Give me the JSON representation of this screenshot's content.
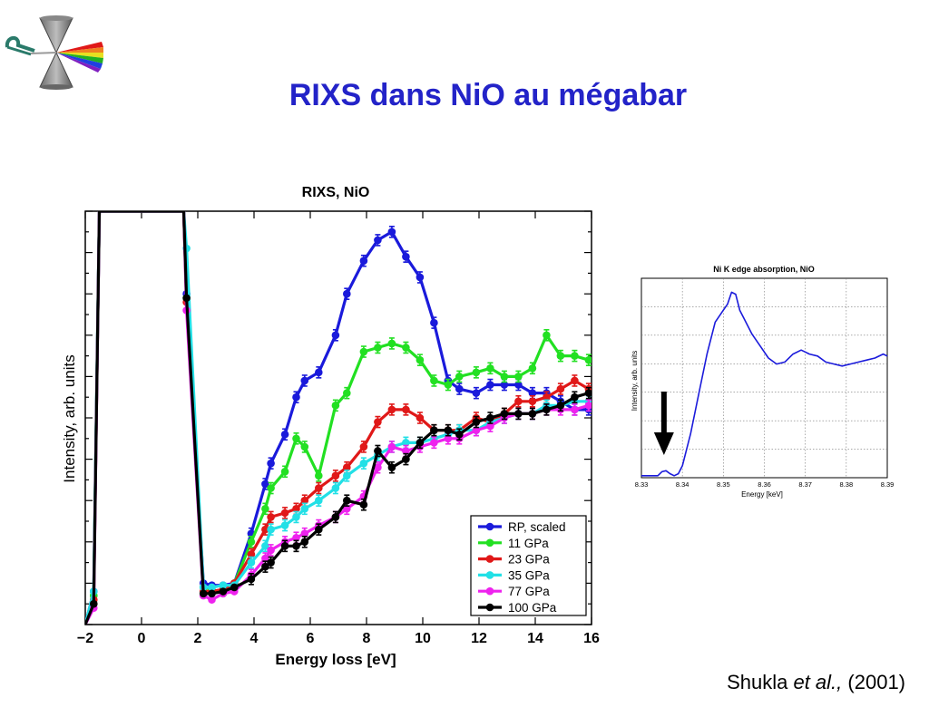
{
  "slide": {
    "title": "RIXS dans NiO au mégabar",
    "citation_author": "Shukla",
    "citation_etal": "et al.,",
    "citation_year": "(2001)"
  },
  "colors": {
    "title": "#2323c8",
    "RP, scaled": "#1a1adb",
    "11 GPa": "#22e022",
    "23 GPa": "#e01818",
    "35 GPa": "#22e0e6",
    "77 GPa": "#ee22ee",
    "100 GPa": "#000000",
    "inset_line": "#1a1adb"
  },
  "chart_data": [
    {
      "type": "line",
      "title": "RIXS, NiO",
      "xlabel": "Energy loss [eV]",
      "ylabel": "Intensity, arb. units",
      "xlim": [
        -2,
        16
      ],
      "ylim": [
        0,
        100
      ],
      "xticks": [
        -2,
        0,
        2,
        4,
        6,
        8,
        10,
        12,
        14,
        16
      ],
      "xtick_labels": [
        "−2",
        "0",
        "2",
        "4",
        "6",
        "8",
        "10",
        "12",
        "14",
        "16"
      ],
      "legend_position": "bottom-right",
      "grid": false,
      "series": [
        {
          "name": "RP, scaled",
          "x": [
            -2,
            -1.7,
            -1.5,
            1.5,
            1.6,
            2.2,
            2.5,
            2.9,
            3.3,
            3.9,
            4.4,
            4.6,
            5.1,
            5.5,
            5.8,
            6.3,
            6.9,
            7.3,
            7.9,
            8.4,
            8.9,
            9.4,
            9.9,
            10.4,
            10.9,
            11.3,
            11.9,
            12.4,
            12.9,
            13.4,
            13.9,
            14.4,
            14.9,
            15.4,
            15.9
          ],
          "y": [
            0,
            8,
            100,
            100,
            80,
            10,
            9.5,
            9.5,
            10,
            22,
            34,
            39,
            46,
            55,
            59,
            61,
            70,
            80,
            88,
            93,
            95,
            89,
            84,
            73,
            59,
            57,
            56,
            58,
            58,
            58,
            56,
            56,
            54,
            52,
            52
          ]
        },
        {
          "name": "11 GPa",
          "x": [
            -2,
            -1.7,
            -1.5,
            1.5,
            1.6,
            2.2,
            2.5,
            2.9,
            3.3,
            3.9,
            4.4,
            4.6,
            5.1,
            5.5,
            5.8,
            6.3,
            6.9,
            7.3,
            7.9,
            8.4,
            8.9,
            9.4,
            9.9,
            10.4,
            10.9,
            11.3,
            11.9,
            12.4,
            12.9,
            13.4,
            13.9,
            14.4,
            14.9,
            15.4,
            15.9
          ],
          "y": [
            0,
            7,
            100,
            100,
            79,
            9,
            8.5,
            7.5,
            10,
            20,
            28,
            33,
            37,
            45,
            43,
            36,
            53,
            56,
            66,
            67,
            68,
            67,
            64,
            59,
            58,
            60,
            61,
            62,
            60,
            60,
            62,
            70,
            65,
            65,
            64
          ]
        },
        {
          "name": "23 GPa",
          "x": [
            -2,
            -1.7,
            -1.5,
            1.5,
            1.6,
            2.2,
            2.5,
            2.9,
            3.3,
            3.9,
            4.4,
            4.6,
            5.1,
            5.5,
            5.8,
            6.3,
            6.9,
            7.3,
            7.9,
            8.4,
            8.9,
            9.4,
            9.9,
            10.4,
            10.9,
            11.3,
            11.9,
            12.4,
            12.9,
            13.4,
            13.9,
            14.4,
            14.9,
            15.4,
            15.9
          ],
          "y": [
            0,
            6,
            100,
            100,
            78,
            8,
            8,
            8.5,
            10,
            17,
            23,
            26,
            27,
            28,
            30,
            33,
            36,
            38,
            43,
            49,
            52,
            52,
            50,
            47,
            47,
            47,
            50,
            49,
            51,
            54,
            54,
            55,
            57,
            59,
            57
          ]
        },
        {
          "name": "35 GPa",
          "x": [
            -2,
            -1.7,
            -1.5,
            1.5,
            1.6,
            2.2,
            2.5,
            2.9,
            3.3,
            3.9,
            4.4,
            4.6,
            5.1,
            5.5,
            5.8,
            6.3,
            6.9,
            7.3,
            7.9,
            8.4,
            8.9,
            9.4,
            9.9,
            10.4,
            10.9,
            11.3,
            11.9,
            12.4,
            12.9,
            13.4,
            13.9,
            14.4,
            14.9,
            15.4,
            15.9
          ],
          "y": [
            0,
            8,
            100,
            100,
            91,
            9,
            9,
            9.5,
            9.5,
            15,
            19,
            23,
            24,
            26,
            28,
            30,
            33,
            36,
            39,
            41,
            43,
            44,
            44,
            45,
            46,
            47,
            47,
            49,
            50,
            51,
            51,
            53,
            53,
            54,
            54
          ]
        },
        {
          "name": "77 GPa",
          "x": [
            -2,
            -1.7,
            -1.5,
            1.5,
            1.6,
            2.2,
            2.5,
            2.9,
            3.3,
            3.9,
            4.4,
            4.6,
            5.1,
            5.5,
            5.8,
            6.3,
            6.9,
            7.3,
            7.9,
            8.4,
            8.9,
            9.4,
            9.9,
            10.4,
            10.9,
            11.3,
            11.9,
            12.4,
            12.9,
            13.4,
            13.9,
            14.4,
            14.9,
            15.4,
            15.9
          ],
          "y": [
            0,
            4,
            100,
            100,
            76,
            7,
            6,
            7.5,
            8,
            12,
            16,
            18,
            20,
            21,
            22,
            24,
            26,
            28,
            31,
            38,
            43,
            42,
            43,
            44,
            45,
            45,
            47,
            48,
            50,
            51,
            51,
            52,
            52,
            52,
            53
          ]
        },
        {
          "name": "100 GPa",
          "x": [
            -2,
            -1.7,
            -1.5,
            1.5,
            1.6,
            2.2,
            2.5,
            2.9,
            3.3,
            3.9,
            4.4,
            4.6,
            5.1,
            5.5,
            5.8,
            6.3,
            6.9,
            7.3,
            7.9,
            8.4,
            8.9,
            9.4,
            9.9,
            10.4,
            10.9,
            11.3,
            11.9,
            12.4,
            12.9,
            13.4,
            13.9,
            14.4,
            14.9,
            15.4,
            15.9
          ],
          "y": [
            0,
            5,
            100,
            100,
            79,
            7.5,
            7.5,
            8,
            9,
            11,
            14,
            15,
            19,
            19,
            20,
            23,
            26,
            30,
            29,
            42,
            38,
            40,
            44,
            47,
            47,
            46,
            49,
            50,
            51,
            51,
            51,
            52,
            53,
            55,
            56
          ]
        }
      ]
    },
    {
      "type": "line",
      "title": "Ni K edge absorption, NiO",
      "xlabel": "Energy [keV]",
      "ylabel": "Intensity, arb. units",
      "xlim": [
        8.33,
        8.39
      ],
      "ylim": [
        0,
        100
      ],
      "xtick_labels": [
        "8.33",
        "8.34",
        "8.35",
        "8.36",
        "8.37",
        "8.38",
        "8.39"
      ],
      "grid": true,
      "annotation": "downward arrow at pre-edge ≈ 8.336 keV",
      "series": [
        {
          "x": [
            8.33,
            8.334,
            8.335,
            8.336,
            8.337,
            8.338,
            8.339,
            8.34,
            8.342,
            8.344,
            8.346,
            8.348,
            8.35,
            8.351,
            8.352,
            8.353,
            8.354,
            8.355,
            8.357,
            8.359,
            8.361,
            8.363,
            8.365,
            8.367,
            8.369,
            8.371,
            8.373,
            8.375,
            8.377,
            8.379,
            8.381,
            8.383,
            8.385,
            8.387,
            8.389,
            8.39
          ],
          "y": [
            1,
            1,
            3,
            3.5,
            2,
            1,
            2,
            6,
            22,
            42,
            62,
            78,
            84,
            87,
            93,
            92,
            84,
            80,
            72,
            66,
            60,
            57,
            58,
            62,
            64,
            62,
            61,
            58,
            57,
            56,
            57,
            58,
            59,
            60,
            62,
            61
          ]
        }
      ]
    }
  ]
}
